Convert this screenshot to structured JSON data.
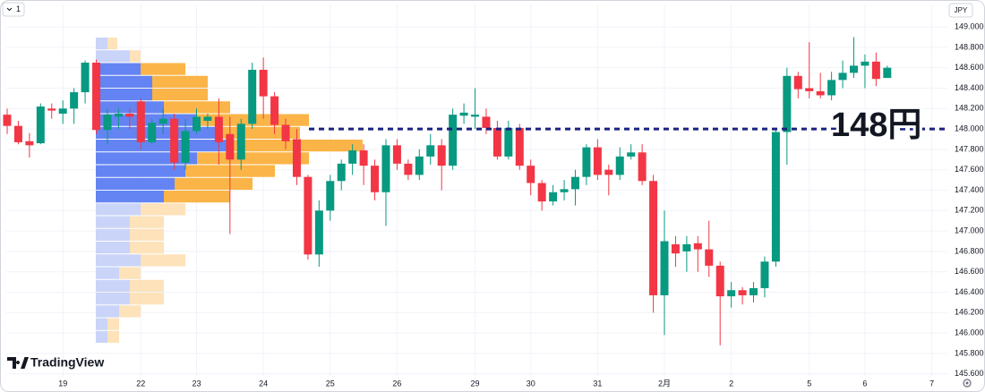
{
  "chart_data": {
    "type": "candlestick",
    "interval_badge": "1",
    "currency": "JPY",
    "brand": "TradingView",
    "up_color": "#089981",
    "down_color": "#f23645",
    "grid": true,
    "x": [
      0,
      1,
      2,
      3,
      4,
      5,
      6,
      7,
      8,
      9,
      10,
      11,
      12,
      13,
      14,
      15,
      16,
      17,
      18,
      19,
      20,
      21,
      22,
      23,
      24,
      25,
      26,
      27,
      28,
      29,
      30,
      31,
      32,
      33,
      34,
      35,
      36,
      37,
      38,
      39,
      40,
      41,
      42,
      43,
      44,
      45,
      46,
      47,
      48,
      49,
      50,
      51,
      52,
      53,
      54,
      55,
      56,
      57,
      58,
      59,
      60,
      61,
      62,
      63,
      64,
      65,
      66,
      67,
      68,
      69,
      70,
      71,
      72,
      73,
      74,
      75,
      76,
      77,
      78,
      79
    ],
    "open": [
      148.14,
      148.03,
      147.88,
      147.86,
      148.2,
      148.15,
      148.2,
      148.36,
      148.65,
      147.99,
      148.12,
      148.15,
      148.27,
      147.87,
      148.05,
      148.1,
      147.67,
      147.98,
      148.08,
      148.12,
      147.95,
      147.7,
      148.05,
      148.58,
      148.32,
      148.04,
      147.9,
      147.53,
      146.77,
      147.2,
      147.49,
      147.66,
      147.79,
      147.64,
      147.38,
      147.84,
      147.66,
      147.55,
      147.73,
      147.84,
      147.64,
      148.13,
      148.12,
      148.12,
      148.01,
      147.73,
      148.01,
      147.64,
      147.47,
      147.29,
      147.38,
      147.41,
      147.53,
      147.82,
      147.6,
      147.55,
      147.73,
      147.77,
      147.49,
      146.37,
      146.87,
      146.8,
      146.88,
      146.82,
      146.66,
      146.36,
      146.42,
      146.37,
      146.44,
      146.7,
      147.97,
      148.52,
      148.4,
      148.37,
      148.33,
      148.48,
      148.55,
      148.62,
      148.66,
      148.5
    ],
    "high": [
      148.2,
      148.08,
      147.96,
      148.25,
      148.25,
      148.28,
      148.4,
      148.67,
      148.68,
      148.2,
      148.2,
      148.2,
      148.3,
      148.1,
      148.2,
      148.15,
      148.1,
      148.2,
      148.15,
      148.3,
      148.12,
      148.1,
      148.65,
      148.7,
      148.36,
      148.1,
      148.0,
      147.55,
      147.3,
      147.55,
      147.7,
      147.85,
      147.85,
      147.7,
      147.9,
      147.9,
      147.7,
      147.8,
      147.95,
      147.9,
      148.2,
      148.25,
      148.4,
      148.2,
      148.08,
      148.08,
      148.05,
      147.7,
      147.5,
      147.45,
      147.5,
      147.6,
      147.85,
      147.9,
      147.65,
      147.82,
      147.85,
      147.85,
      147.55,
      147.2,
      146.95,
      146.95,
      146.95,
      147.1,
      146.7,
      146.5,
      146.45,
      146.5,
      146.75,
      148.0,
      148.6,
      148.56,
      148.85,
      148.55,
      148.56,
      148.67,
      148.9,
      148.73,
      148.75,
      148.62
    ],
    "low": [
      147.95,
      147.85,
      147.72,
      147.85,
      148.1,
      148.05,
      148.05,
      148.25,
      147.95,
      147.85,
      148.0,
      148.0,
      147.8,
      147.85,
      147.95,
      147.6,
      147.6,
      147.95,
      148.0,
      147.65,
      146.97,
      147.6,
      148.0,
      148.1,
      147.95,
      147.8,
      147.45,
      146.72,
      146.65,
      147.1,
      147.4,
      147.55,
      147.45,
      147.3,
      147.05,
      147.6,
      147.5,
      147.5,
      147.65,
      147.4,
      147.6,
      148.05,
      148.0,
      147.95,
      147.7,
      147.7,
      147.6,
      147.35,
      147.2,
      147.25,
      147.3,
      147.25,
      147.45,
      147.5,
      147.35,
      147.5,
      147.7,
      147.45,
      146.2,
      145.98,
      146.65,
      146.6,
      146.6,
      146.55,
      145.88,
      146.25,
      146.28,
      146.3,
      146.35,
      146.65,
      147.65,
      148.3,
      148.3,
      148.3,
      148.28,
      148.4,
      148.5,
      148.4,
      148.42,
      148.5
    ],
    "close": [
      148.03,
      147.87,
      147.84,
      148.22,
      148.18,
      148.2,
      148.36,
      148.65,
      147.99,
      148.14,
      148.15,
      148.12,
      147.87,
      148.06,
      148.1,
      147.67,
      147.98,
      148.12,
      148.12,
      147.87,
      147.7,
      148.05,
      148.58,
      148.32,
      148.04,
      147.88,
      147.53,
      146.77,
      147.2,
      147.49,
      147.66,
      147.79,
      147.64,
      147.38,
      147.84,
      147.66,
      147.55,
      147.73,
      147.84,
      147.64,
      148.14,
      148.16,
      148.14,
      148.01,
      147.73,
      148.01,
      147.64,
      147.47,
      147.29,
      147.38,
      147.41,
      147.53,
      147.82,
      147.55,
      147.55,
      147.73,
      147.77,
      147.49,
      146.37,
      146.9,
      146.78,
      146.87,
      146.82,
      146.66,
      146.36,
      146.42,
      146.37,
      146.44,
      146.7,
      147.97,
      148.52,
      148.39,
      148.37,
      148.33,
      148.48,
      148.55,
      148.62,
      148.66,
      148.49,
      148.6
    ],
    "xlim": [
      -0.08,
      84.4
    ],
    "xticks": [
      {
        "value": 5,
        "label": "19"
      },
      {
        "value": 12,
        "label": "22"
      },
      {
        "value": 17,
        "label": "23"
      },
      {
        "value": 23,
        "label": "24"
      },
      {
        "value": 29,
        "label": "25"
      },
      {
        "value": 35,
        "label": "26"
      },
      {
        "value": 42,
        "label": "29"
      },
      {
        "value": 47,
        "label": "30"
      },
      {
        "value": 53,
        "label": "31"
      },
      {
        "value": 59,
        "label": "2月"
      },
      {
        "value": 65,
        "label": "2"
      },
      {
        "value": 72,
        "label": "5"
      },
      {
        "value": 77,
        "label": "6"
      },
      {
        "value": 83,
        "label": "7"
      }
    ],
    "ylim": [
      145.58,
      149.22
    ],
    "yticks": [
      {
        "value": 145.6,
        "label": "145.600"
      },
      {
        "value": 145.8,
        "label": "145.800"
      },
      {
        "value": 146.0,
        "label": "146.000"
      },
      {
        "value": 146.2,
        "label": "146.200"
      },
      {
        "value": 146.4,
        "label": "146.400"
      },
      {
        "value": 146.6,
        "label": "146.600"
      },
      {
        "value": 146.8,
        "label": "146.800"
      },
      {
        "value": 147.0,
        "label": "147.000"
      },
      {
        "value": 147.2,
        "label": "147.200"
      },
      {
        "value": 147.4,
        "label": "147.400"
      },
      {
        "value": 147.6,
        "label": "147.600"
      },
      {
        "value": 147.8,
        "label": "147.800"
      },
      {
        "value": 148.0,
        "label": "148.000"
      },
      {
        "value": 148.2,
        "label": "148.200"
      },
      {
        "value": 148.4,
        "label": "148.400"
      },
      {
        "value": 148.6,
        "label": "148.600"
      },
      {
        "value": 148.8,
        "label": "148.800"
      },
      {
        "value": 149.0,
        "label": "149.000"
      }
    ],
    "price_line": {
      "value": 148.0,
      "label": "148円",
      "color": "#1a237e"
    },
    "volume_profile": {
      "levels": [
        148.9,
        148.775,
        148.65,
        148.525,
        148.4,
        148.275,
        148.15,
        148.025,
        147.9,
        147.775,
        147.65,
        147.525,
        147.4,
        147.275,
        147.15,
        147.025,
        146.9,
        146.775,
        146.65,
        146.525,
        146.4,
        146.275,
        146.15,
        146.025,
        145.9
      ],
      "buy": [
        13,
        38,
        50,
        63,
        63,
        76,
        113,
        138,
        150,
        113,
        100,
        88,
        76,
        50,
        38,
        38,
        38,
        50,
        26,
        38,
        38,
        26,
        13,
        13
      ],
      "sell": [
        11,
        12,
        50,
        62,
        62,
        74,
        125,
        90,
        148,
        125,
        100,
        87,
        74,
        50,
        38,
        38,
        38,
        50,
        24,
        38,
        38,
        24,
        13,
        13
      ],
      "value_area": [
        147.275,
        148.65
      ],
      "buy_color": "#6384f2",
      "sell_color": "#fbb447",
      "buy_color_outside": "#c9d4f8",
      "sell_color_outside": "#fde2ba"
    }
  }
}
